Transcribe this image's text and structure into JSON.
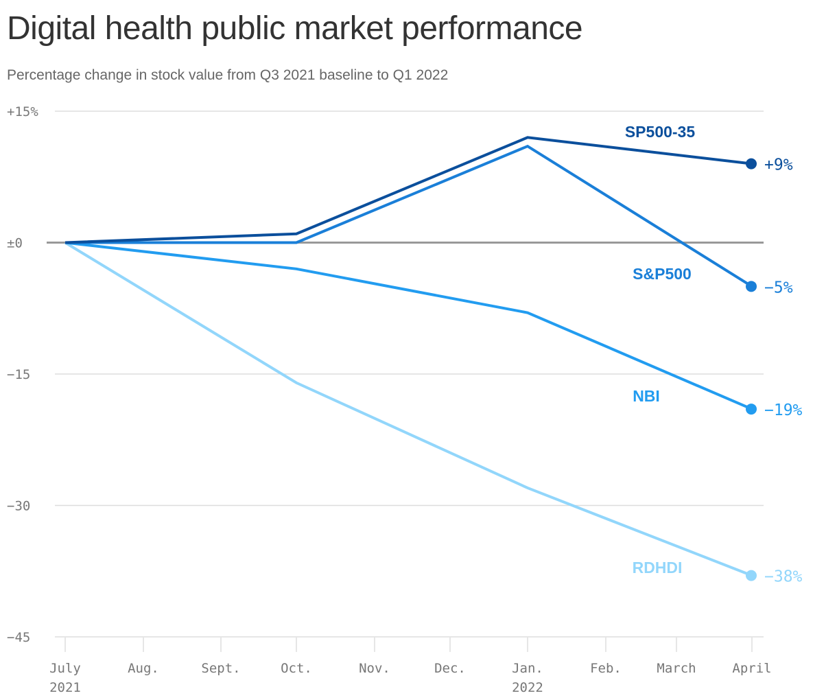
{
  "title": "Digital health public market performance",
  "subtitle": "Percentage change in stock value from Q3 2021 baseline to Q1 2022",
  "chart_data": {
    "type": "line",
    "title": "Digital health public market performance",
    "subtitle": "Percentage change in stock value from Q3 2021 baseline to Q1 2022",
    "xlabel": "",
    "ylabel": "",
    "ylim": [
      -45,
      15
    ],
    "yticks": [
      {
        "value": 15,
        "label": "+15%"
      },
      {
        "value": 0,
        "label": "±0"
      },
      {
        "value": -15,
        "label": "−15"
      },
      {
        "value": -30,
        "label": "−30"
      },
      {
        "value": -45,
        "label": "−45"
      }
    ],
    "xticks": [
      {
        "label": "July",
        "sublabel": "2021"
      },
      {
        "label": "Aug.",
        "sublabel": ""
      },
      {
        "label": "Sept.",
        "sublabel": ""
      },
      {
        "label": "Oct.",
        "sublabel": ""
      },
      {
        "label": "Nov.",
        "sublabel": ""
      },
      {
        "label": "Dec.",
        "sublabel": ""
      },
      {
        "label": "Jan.",
        "sublabel": "2022"
      },
      {
        "label": "Feb.",
        "sublabel": ""
      },
      {
        "label": "March",
        "sublabel": ""
      },
      {
        "label": "April",
        "sublabel": ""
      }
    ],
    "grid": true,
    "series": [
      {
        "name": "SP500-35",
        "color": "#0b4f9c",
        "x": [
          "July",
          "Oct.",
          "Jan.",
          "April"
        ],
        "values": [
          0,
          1,
          12,
          9
        ],
        "end_label": "+9%"
      },
      {
        "name": "S&P500",
        "color": "#1a7fd8",
        "x": [
          "July",
          "Oct.",
          "Jan.",
          "April"
        ],
        "values": [
          0,
          0,
          11,
          -5
        ],
        "end_label": "−5%"
      },
      {
        "name": "NBI",
        "color": "#229cf0",
        "x": [
          "July",
          "Oct.",
          "Jan.",
          "April"
        ],
        "values": [
          0,
          -3,
          -8,
          -19
        ],
        "end_label": "−19%"
      },
      {
        "name": "RDHDI",
        "color": "#92d6fb",
        "x": [
          "July",
          "Oct.",
          "Jan.",
          "April"
        ],
        "values": [
          0,
          -16,
          -28,
          -38
        ],
        "end_label": "−38%"
      }
    ]
  }
}
